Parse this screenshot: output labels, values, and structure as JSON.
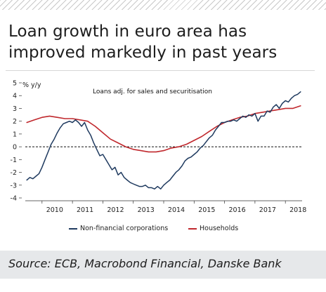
{
  "title_lines": [
    "Loan growth in euro area has",
    "improved markedly in past years"
  ],
  "source": "Source: ECB, Macrobond Financial, Danske Bank",
  "colors": {
    "nfc": "#1f3a5f",
    "households": "#c0282d",
    "zero_line": "#111111",
    "axis_text": "#222222",
    "panel_bg": "#ffffff",
    "source_bg": "#e6e8ea"
  },
  "chart_data": {
    "type": "line",
    "title": "",
    "annotation": "Loans adj. for sales and securitisation",
    "ylabel": "% y/y",
    "xlabel": "",
    "ylim": [
      -4,
      5
    ],
    "yticks": [
      -4,
      -3,
      -2,
      -1,
      0,
      1,
      2,
      3,
      4,
      5
    ],
    "xlim": [
      2009.45,
      2018.55
    ],
    "xticks": [
      2010,
      2011,
      2012,
      2013,
      2014,
      2015,
      2016,
      2017,
      2018
    ],
    "xtick_labels": [
      "2010",
      "2011",
      "2012",
      "2013",
      "2014",
      "2015",
      "2016",
      "2017",
      "2018"
    ],
    "zero_line": "dashed",
    "grid": false,
    "legend_position": "bottom",
    "series": [
      {
        "name": "Non-financial corporations",
        "color": "#1f3a5f",
        "x": [
          2009.5,
          2009.6,
          2009.7,
          2009.8,
          2009.9,
          2010.0,
          2010.1,
          2010.2,
          2010.3,
          2010.4,
          2010.5,
          2010.6,
          2010.7,
          2010.8,
          2010.9,
          2011.0,
          2011.1,
          2011.2,
          2011.3,
          2011.4,
          2011.5,
          2011.6,
          2011.7,
          2011.8,
          2011.9,
          2012.0,
          2012.1,
          2012.2,
          2012.3,
          2012.4,
          2012.5,
          2012.6,
          2012.7,
          2012.8,
          2012.9,
          2013.0,
          2013.1,
          2013.2,
          2013.3,
          2013.4,
          2013.5,
          2013.6,
          2013.7,
          2013.8,
          2013.9,
          2014.0,
          2014.1,
          2014.2,
          2014.3,
          2014.4,
          2014.5,
          2014.6,
          2014.7,
          2014.8,
          2014.9,
          2015.0,
          2015.1,
          2015.2,
          2015.3,
          2015.4,
          2015.5,
          2015.6,
          2015.7,
          2015.8,
          2015.9,
          2016.0,
          2016.1,
          2016.2,
          2016.3,
          2016.4,
          2016.5,
          2016.6,
          2016.7,
          2016.8,
          2016.9,
          2017.0,
          2017.1,
          2017.2,
          2017.3,
          2017.4,
          2017.5,
          2017.6,
          2017.7,
          2017.8,
          2017.9,
          2018.0,
          2018.1,
          2018.2,
          2018.3,
          2018.4,
          2018.5
        ],
        "y": [
          -2.6,
          -2.4,
          -2.5,
          -2.3,
          -2.1,
          -1.6,
          -1.0,
          -0.4,
          0.2,
          0.6,
          1.1,
          1.5,
          1.8,
          1.9,
          2.0,
          1.9,
          2.1,
          1.9,
          1.6,
          1.9,
          1.3,
          0.9,
          0.3,
          -0.2,
          -0.7,
          -0.6,
          -1.0,
          -1.4,
          -1.8,
          -1.6,
          -2.2,
          -2.0,
          -2.4,
          -2.6,
          -2.8,
          -2.9,
          -3.0,
          -3.1,
          -3.1,
          -3.0,
          -3.2,
          -3.2,
          -3.3,
          -3.1,
          -3.3,
          -3.0,
          -2.8,
          -2.6,
          -2.3,
          -2.0,
          -1.8,
          -1.5,
          -1.1,
          -0.9,
          -0.8,
          -0.6,
          -0.4,
          -0.1,
          0.1,
          0.4,
          0.7,
          0.9,
          1.3,
          1.6,
          1.9,
          1.9,
          2.0,
          2.0,
          2.1,
          2.0,
          2.2,
          2.4,
          2.3,
          2.5,
          2.4,
          2.6,
          2.0,
          2.4,
          2.4,
          2.8,
          2.7,
          3.1,
          3.3,
          3.0,
          3.4,
          3.6,
          3.5,
          3.8,
          4.0,
          4.1,
          4.3
        ]
      },
      {
        "name": "Households",
        "color": "#c0282d",
        "x": [
          2009.5,
          2009.75,
          2010.0,
          2010.25,
          2010.5,
          2010.75,
          2011.0,
          2011.25,
          2011.5,
          2011.75,
          2012.0,
          2012.25,
          2012.5,
          2012.75,
          2013.0,
          2013.25,
          2013.5,
          2013.75,
          2014.0,
          2014.25,
          2014.5,
          2014.75,
          2015.0,
          2015.25,
          2015.5,
          2015.75,
          2016.0,
          2016.25,
          2016.5,
          2016.75,
          2017.0,
          2017.25,
          2017.5,
          2017.75,
          2018.0,
          2018.25,
          2018.5
        ],
        "y": [
          1.9,
          2.1,
          2.3,
          2.4,
          2.3,
          2.2,
          2.2,
          2.1,
          2.0,
          1.6,
          1.1,
          0.6,
          0.3,
          0.0,
          -0.2,
          -0.3,
          -0.4,
          -0.4,
          -0.3,
          -0.1,
          0.0,
          0.2,
          0.5,
          0.8,
          1.2,
          1.6,
          1.9,
          2.1,
          2.3,
          2.4,
          2.6,
          2.7,
          2.8,
          2.9,
          3.0,
          3.0,
          3.2
        ]
      }
    ]
  }
}
